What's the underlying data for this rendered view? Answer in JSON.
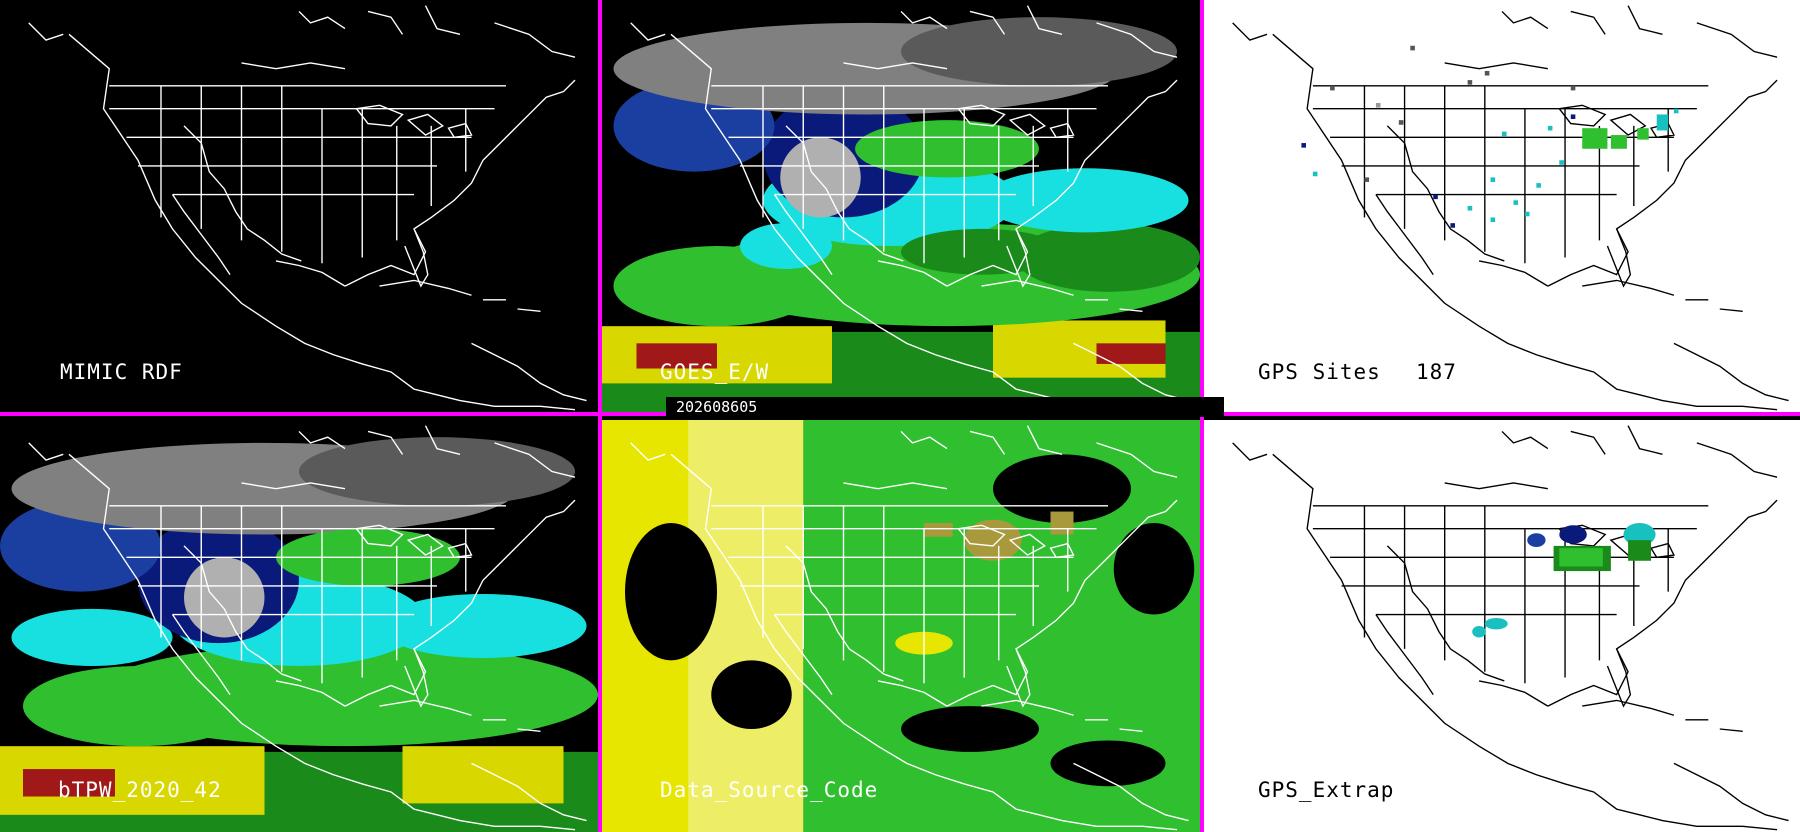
{
  "timestamp": "202608605",
  "panels": [
    {
      "id": "mimic-rdf",
      "label": "MIMIC RDF",
      "theme": "dark"
    },
    {
      "id": "goes-ew",
      "label": "GOES_E/W",
      "theme": "dark"
    },
    {
      "id": "gps-sites",
      "label": "GPS Sites",
      "count": "187",
      "theme": "light"
    },
    {
      "id": "btpw",
      "label": "bTPW_2020_42",
      "theme": "dark"
    },
    {
      "id": "data-source",
      "label": "Data_Source_Code",
      "theme": "dark"
    },
    {
      "id": "gps-extrap",
      "label": "GPS_Extrap",
      "theme": "light"
    }
  ],
  "colors": {
    "divider": "#ff00ff",
    "map_lines_dark": "#ffffff",
    "map_lines_light": "#000000",
    "tpw_scale": [
      "#808080",
      "#0a1a7a",
      "#1a3fa0",
      "#18e0e0",
      "#2fbf2f",
      "#1a8a1a",
      "#d8d800",
      "#a01818"
    ],
    "data_source": [
      "#e6e600",
      "#2fbf2f",
      "#a89a3c"
    ]
  }
}
